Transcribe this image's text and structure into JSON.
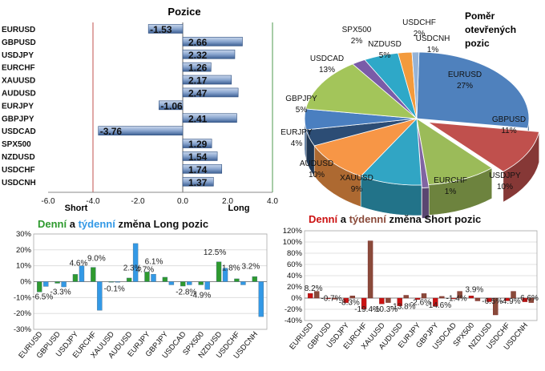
{
  "colors": {
    "long_daily": "#2e9a2e",
    "long_weekly": "#3399e6",
    "short_daily": "#cc1111",
    "short_weekly": "#8a4a3a",
    "bar_fill": "#7f9cc4",
    "short_line": "#c0504d",
    "long_line": "#4f9a4f"
  },
  "chart_data": [
    {
      "id": "positions",
      "type": "bar",
      "orientation": "horizontal",
      "title": "Pozice",
      "categories": [
        "EURUSD",
        "GBPUSD",
        "USDJPY",
        "EURCHF",
        "XAUUSD",
        "AUDUSD",
        "EURJPY",
        "GBPJPY",
        "USDCAD",
        "SPX500",
        "NZDUSD",
        "USDCHF",
        "USDCNH"
      ],
      "values": [
        -1.53,
        2.66,
        2.32,
        1.26,
        2.17,
        2.47,
        -1.06,
        2.41,
        -3.76,
        1.29,
        1.54,
        1.74,
        1.37
      ],
      "value_labels": [
        "-1.53",
        "2.66",
        "2.32",
        "1.26",
        "2.17",
        "2.47",
        "-1.06",
        "2.41",
        "-3.76",
        "1.29",
        "1.54",
        "1.74",
        "1.37"
      ],
      "xlim": [
        -6,
        4
      ],
      "ticks": [
        "-6.0",
        "-4.0",
        "-2.0",
        "0.0",
        "2.0",
        "4.0"
      ],
      "short_label": "Short",
      "long_label": "Long"
    },
    {
      "id": "ratio",
      "type": "pie",
      "title_lines": [
        "Poměr",
        "otevřených",
        "pozic"
      ],
      "slices": [
        {
          "label": "EURUSD",
          "pct_label": "27%",
          "value": 27,
          "color": "#4f81bd"
        },
        {
          "label": "GBPUSD",
          "pct_label": "11%",
          "value": 11,
          "color": "#c0504d"
        },
        {
          "label": "USDJPY",
          "pct_label": "10%",
          "value": 10,
          "color": "#9bbb59"
        },
        {
          "label": "EURCHF",
          "pct_label": "1%",
          "value": 1,
          "color": "#8064a2"
        },
        {
          "label": "XAUUSD",
          "pct_label": "9%",
          "value": 9,
          "color": "#31a5c4"
        },
        {
          "label": "AUDUSD",
          "pct_label": "10%",
          "value": 10,
          "color": "#f79646"
        },
        {
          "label": "EURJPY",
          "pct_label": "4%",
          "value": 4,
          "color": "#2c4d75"
        },
        {
          "label": "GBPJPY",
          "pct_label": "5%",
          "value": 5,
          "color": "#4a7fc0"
        },
        {
          "label": "USDCAD",
          "pct_label": "13%",
          "value": 13,
          "color": "#a3c55a"
        },
        {
          "label": "SPX500",
          "pct_label": "2%",
          "value": 2,
          "color": "#7a5ca8"
        },
        {
          "label": "NZDUSD",
          "pct_label": "5%",
          "value": 5,
          "color": "#2ea8c8"
        },
        {
          "label": "USDCHF",
          "pct_label": "2%",
          "value": 2,
          "color": "#f39a3c"
        },
        {
          "label": "USDCNH",
          "pct_label": "1%",
          "value": 1,
          "color": "#95b3d7"
        }
      ]
    },
    {
      "id": "long_change",
      "type": "bar",
      "title_parts": [
        "Denní",
        " a ",
        "týdenní",
        " změna Long pozic"
      ],
      "categories": [
        "EURUSD",
        "GBPUSD",
        "USDJPY",
        "EURCHF",
        "XAUUSD",
        "AUDUSD",
        "EURJPY",
        "GBPJPY",
        "USDCAD",
        "SPX500",
        "NZDUSD",
        "USDCHF",
        "USDCNH"
      ],
      "series": [
        {
          "name": "Denní",
          "values": [
            -6.5,
            -1.0,
            4.6,
            9.0,
            -0.1,
            2.3,
            6.1,
            2.8,
            -2.8,
            -2.0,
            12.5,
            1.8,
            3.2
          ]
        },
        {
          "name": "Týdenní",
          "values": [
            -3.0,
            -3.3,
            10.0,
            -18.0,
            0.0,
            24.0,
            4.7,
            -2.0,
            -2.0,
            -4.9,
            8.5,
            -2.0,
            -22.0
          ]
        }
      ],
      "data_labels": [
        {
          "text": "-6.5%",
          "cat": 0,
          "y": -11
        },
        {
          "text": "-3.3%",
          "cat": 1,
          "y": -8
        },
        {
          "text": "4.6%",
          "cat": 2,
          "y": 10
        },
        {
          "text": "9.0%",
          "cat": 3,
          "y": 13
        },
        {
          "text": "-0.1%",
          "cat": 4,
          "y": -6
        },
        {
          "text": "2.3%",
          "cat": 5,
          "y": 7
        },
        {
          "text": "4.7%",
          "cat": 5.7,
          "y": 6
        },
        {
          "text": "6.1%",
          "cat": 6.2,
          "y": 11
        },
        {
          "text": "-2.8%",
          "cat": 8,
          "y": -8
        },
        {
          "text": "-4.9%",
          "cat": 8.8,
          "y": -10
        },
        {
          "text": "12.5%",
          "cat": 9.6,
          "y": 17
        },
        {
          "text": "1.8%",
          "cat": 10.5,
          "y": 7
        },
        {
          "text": "3.2%",
          "cat": 11.6,
          "y": 8
        }
      ],
      "ylim": [
        -30,
        30
      ],
      "ticks": [
        "-30%",
        "-20%",
        "-10%",
        "0%",
        "10%",
        "20%",
        "30%"
      ]
    },
    {
      "id": "short_change",
      "type": "bar",
      "title_parts": [
        "Denní",
        " a ",
        "týdenní",
        " změna Short pozic"
      ],
      "categories": [
        "EURUSD",
        "GBPUSD",
        "USDJPY",
        "EURCHF",
        "XAUUSD",
        "AUDUSD",
        "EURJPY",
        "GBPJPY",
        "USDCAD",
        "SPX500",
        "NZDUSD",
        "USDCHF",
        "USDCNH"
      ],
      "series": [
        {
          "name": "Denní",
          "values": [
            8.2,
            -0.7,
            -8.3,
            -19.4,
            -10.3,
            -13.8,
            -2.6,
            -14.6,
            -1.4,
            3.9,
            -6.5,
            -4.9,
            -6.6
          ]
        },
        {
          "name": "Týdenní",
          "values": [
            12.0,
            -2.0,
            4.0,
            102.0,
            -8.0,
            5.0,
            8.0,
            3.0,
            12.0,
            -5.0,
            -30.0,
            12.0,
            -8.0
          ]
        }
      ],
      "data_labels": [
        {
          "text": "8.2%",
          "cat": 0,
          "y": 13
        },
        {
          "text": "-0.7%",
          "cat": 1,
          "y": -5
        },
        {
          "text": "-8.3%",
          "cat": 2,
          "y": -12
        },
        {
          "text": "-19.4%",
          "cat": 3,
          "y": -24
        },
        {
          "text": "-10.3%",
          "cat": 4,
          "y": -24
        },
        {
          "text": "-13.8%",
          "cat": 5,
          "y": -19
        },
        {
          "text": "-2.6%",
          "cat": 6,
          "y": -12
        },
        {
          "text": "-14.6%",
          "cat": 7,
          "y": -17
        },
        {
          "text": "-1.4%",
          "cat": 8,
          "y": -5
        },
        {
          "text": "3.9%",
          "cat": 9,
          "y": 11
        },
        {
          "text": "-6.5%",
          "cat": 10,
          "y": -10
        },
        {
          "text": "-4.9%",
          "cat": 11,
          "y": -10
        },
        {
          "text": "-6.6%",
          "cat": 12,
          "y": -4
        }
      ],
      "ylim": [
        -40,
        120
      ],
      "ticks": [
        "-40%",
        "-20%",
        "0%",
        "20%",
        "40%",
        "60%",
        "80%",
        "100%",
        "120%"
      ]
    }
  ]
}
